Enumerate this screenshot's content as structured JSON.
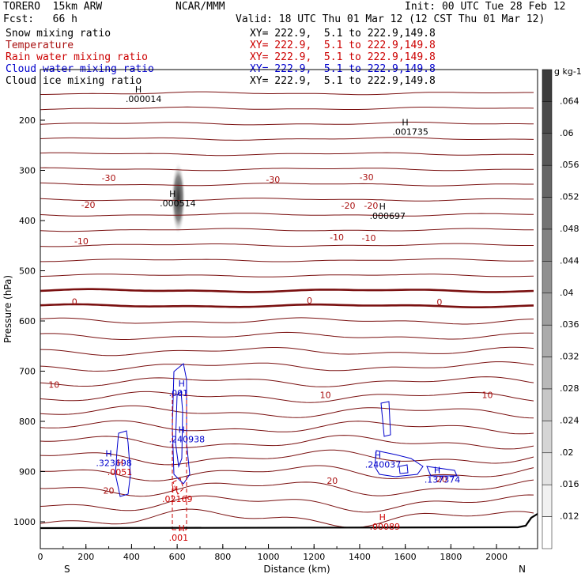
{
  "header": {
    "model": "TORERO  15km ARW",
    "center": "NCAR/MMM",
    "init": "Init: 00 UTC Tue 28 Feb 12",
    "fcst": "Fcst:   66 h",
    "valid": "Valid: 18 UTC Thu 01 Mar 12 (12 CST Thu 01 Mar 12)"
  },
  "legend": [
    {
      "name": "Snow mixing ratio",
      "xy": "XY= 222.9,  5.1 to 222.9,149.8",
      "color": "#000000",
      "xy_color": "#000000"
    },
    {
      "name": "Temperature",
      "xy": "XY= 222.9,  5.1 to 222.9,149.8",
      "color": "#aa1111",
      "xy_color": "#cc0000"
    },
    {
      "name": "Rain water mixing ratio",
      "xy": "XY= 222.9,  5.1 to 222.9,149.8",
      "color": "#cc0000",
      "xy_color": "#cc0000"
    },
    {
      "name": "Cloud water mixing ratio",
      "xy": "XY= 222.9,  5.1 to 222.9,149.8",
      "color": "#0000cc",
      "xy_color": "#0000cc"
    },
    {
      "name": "Cloud ice mixing ratio",
      "xy": "XY= 222.9,  5.1 to 222.9,149.8",
      "color": "#000000",
      "xy_color": "#000000"
    }
  ],
  "chart_data": {
    "type": "contour",
    "xlabel": "Distance (km)",
    "ylabel": "Pressure (hPa)",
    "xlim": [
      0,
      2180
    ],
    "ylim": [
      1050,
      100
    ],
    "x_ticks": [
      0,
      200,
      400,
      600,
      800,
      1000,
      1200,
      1400,
      1600,
      1800,
      2000
    ],
    "y_ticks": [
      200,
      300,
      400,
      500,
      600,
      700,
      800,
      900,
      1000
    ],
    "x_end_labels": {
      "left": "S",
      "right": "N"
    },
    "colorbar": {
      "unit": "g kg-1",
      "ticks": [
        ".064",
        ".06",
        ".056",
        ".052",
        ".048",
        ".044",
        ".04",
        ".036",
        ".032",
        ".028",
        ".024",
        ".02",
        ".016",
        ".012"
      ]
    },
    "temperature_labels": [
      {
        "text": "-30",
        "x": 300,
        "p": 315
      },
      {
        "text": "-30",
        "x": 1020,
        "p": 318
      },
      {
        "text": "-30",
        "x": 1430,
        "p": 313
      },
      {
        "text": "-20",
        "x": 210,
        "p": 368
      },
      {
        "text": "-20",
        "x": 1350,
        "p": 370
      },
      {
        "text": "-20",
        "x": 1450,
        "p": 370
      },
      {
        "text": "-10",
        "x": 180,
        "p": 440
      },
      {
        "text": "-10",
        "x": 1300,
        "p": 432
      },
      {
        "text": "-10",
        "x": 1440,
        "p": 434
      },
      {
        "text": "0",
        "x": 150,
        "p": 560
      },
      {
        "text": "0",
        "x": 1180,
        "p": 558
      },
      {
        "text": "0",
        "x": 1750,
        "p": 561
      },
      {
        "text": "10",
        "x": 60,
        "p": 725
      },
      {
        "text": "10",
        "x": 1250,
        "p": 745
      },
      {
        "text": "10",
        "x": 1960,
        "p": 745
      },
      {
        "text": "20",
        "x": 300,
        "p": 935
      },
      {
        "text": "20",
        "x": 1280,
        "p": 915
      },
      {
        "text": "20",
        "x": 1760,
        "p": 912
      }
    ],
    "extrema": [
      {
        "h": "H",
        "value": ".000014",
        "x": 450,
        "p": 155,
        "color": "#000000"
      },
      {
        "h": "H",
        "value": ".001735",
        "x": 1620,
        "p": 220,
        "color": "#000000"
      },
      {
        "h": "H",
        "value": ".000514",
        "x": 600,
        "p": 362,
        "color": "#000000"
      },
      {
        "h": "H",
        "value": ".000697",
        "x": 1520,
        "p": 387,
        "color": "#000000"
      },
      {
        "h": "H",
        "value": ".001",
        "x": 640,
        "p": 738,
        "color": "#0000cc"
      },
      {
        "h": "H",
        "value": ".240938",
        "x": 640,
        "p": 830,
        "color": "#0000cc"
      },
      {
        "h": "H",
        "value": ".323698",
        "x": 320,
        "p": 877,
        "color": "#0000cc"
      },
      {
        "h": "H",
        "value": ".0051",
        "x": 370,
        "p": 895,
        "color": "#cc0000"
      },
      {
        "h": "H",
        "value": ".02169",
        "x": 610,
        "p": 948,
        "color": "#cc0000"
      },
      {
        "h": "H",
        "value": ".001",
        "x": 640,
        "p": 1025,
        "color": "#cc0000"
      },
      {
        "h": "H",
        "value": ".240037",
        "x": 1500,
        "p": 880,
        "color": "#0000cc"
      },
      {
        "h": "H",
        "value": ".137374",
        "x": 1760,
        "p": 910,
        "color": "#0000cc"
      },
      {
        "h": "H",
        "value": ".00089",
        "x": 1520,
        "p": 1003,
        "color": "#cc0000"
      }
    ]
  }
}
